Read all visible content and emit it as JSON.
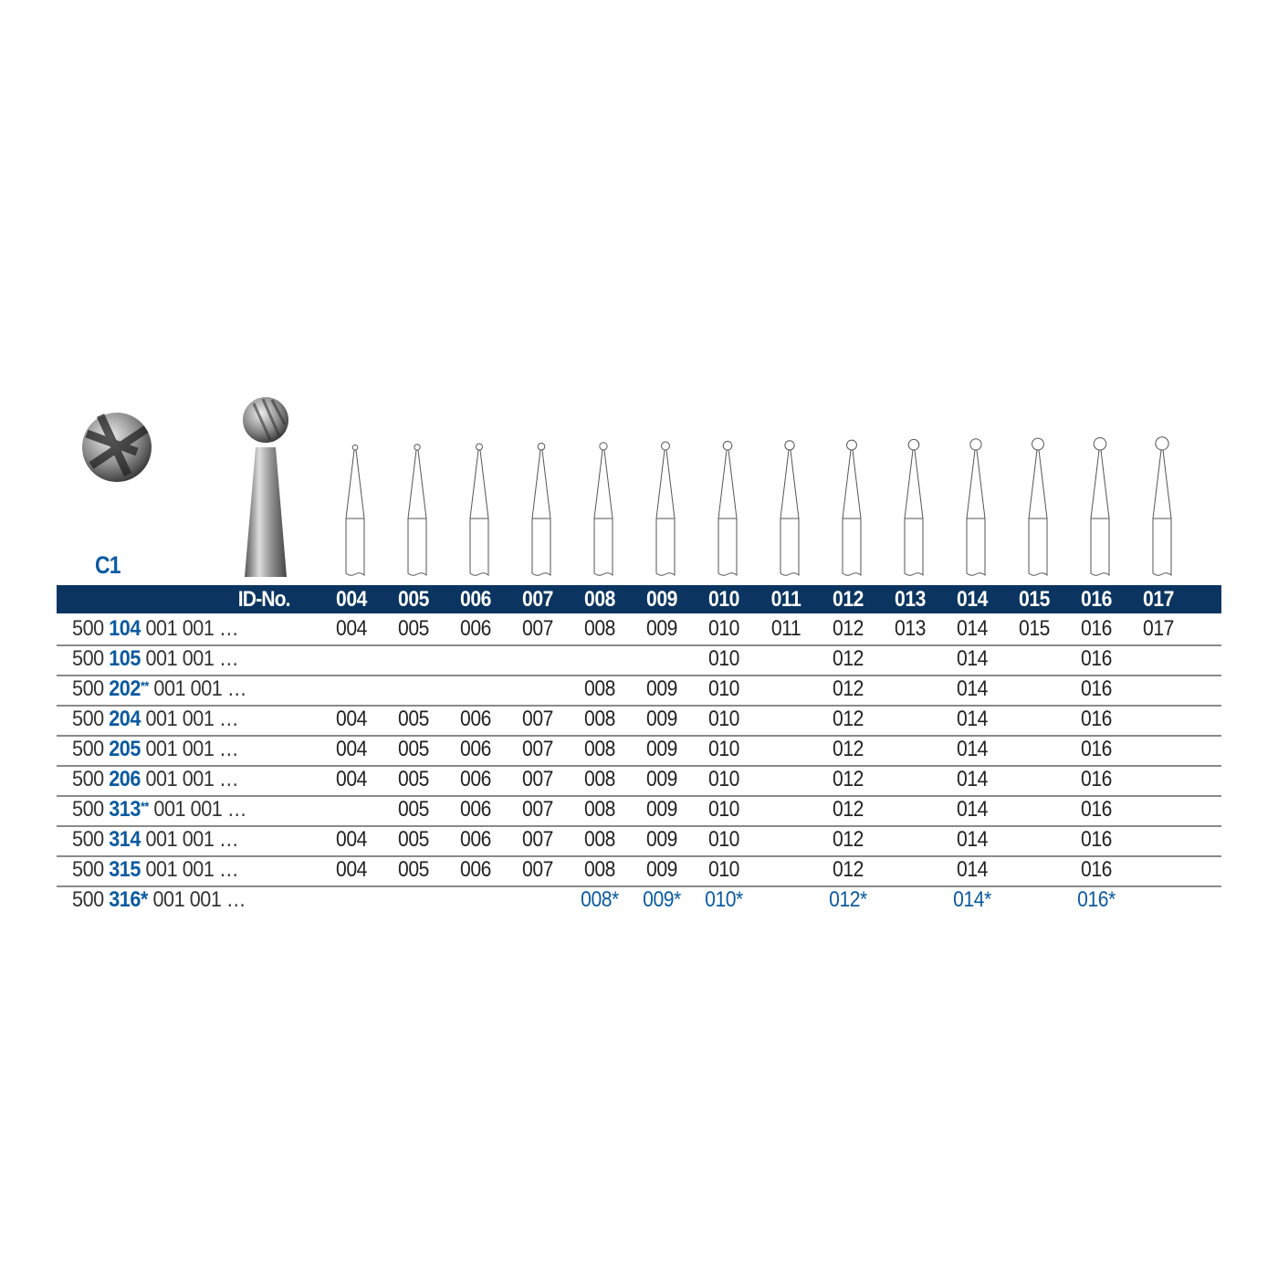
{
  "product_code": "C1",
  "header": {
    "id_label": "ID-No.",
    "sizes": [
      "004",
      "005",
      "006",
      "007",
      "008",
      "009",
      "010",
      "011",
      "012",
      "013",
      "014",
      "015",
      "016",
      "017"
    ]
  },
  "colors": {
    "header_bg": "#0b3560",
    "accent": "#0a5aa0",
    "text": "#222222",
    "separator": "#8a8a8a"
  },
  "rows": [
    {
      "prefix": "500",
      "code": "104",
      "mark": "",
      "suffix": "001 001 …",
      "cells": [
        "004",
        "005",
        "006",
        "007",
        "008",
        "009",
        "010",
        "011",
        "012",
        "013",
        "014",
        "015",
        "016",
        "017"
      ]
    },
    {
      "prefix": "500",
      "code": "105",
      "mark": "",
      "suffix": "001 001 …",
      "cells": [
        "",
        "",
        "",
        "",
        "",
        "",
        "010",
        "",
        "012",
        "",
        "014",
        "",
        "016",
        ""
      ]
    },
    {
      "prefix": "500",
      "code": "202",
      "mark": "**",
      "suffix": "001 001 …",
      "cells": [
        "",
        "",
        "",
        "",
        "008",
        "009",
        "010",
        "",
        "012",
        "",
        "014",
        "",
        "016",
        ""
      ]
    },
    {
      "prefix": "500",
      "code": "204",
      "mark": "",
      "suffix": "001 001 …",
      "cells": [
        "004",
        "005",
        "006",
        "007",
        "008",
        "009",
        "010",
        "",
        "012",
        "",
        "014",
        "",
        "016",
        ""
      ]
    },
    {
      "prefix": "500",
      "code": "205",
      "mark": "",
      "suffix": "001 001 …",
      "cells": [
        "004",
        "005",
        "006",
        "007",
        "008",
        "009",
        "010",
        "",
        "012",
        "",
        "014",
        "",
        "016",
        ""
      ]
    },
    {
      "prefix": "500",
      "code": "206",
      "mark": "",
      "suffix": "001 001 …",
      "cells": [
        "004",
        "005",
        "006",
        "007",
        "008",
        "009",
        "010",
        "",
        "012",
        "",
        "014",
        "",
        "016",
        ""
      ]
    },
    {
      "prefix": "500",
      "code": "313",
      "mark": "**",
      "suffix": "001 001 …",
      "cells": [
        "",
        "005",
        "006",
        "007",
        "008",
        "009",
        "010",
        "",
        "012",
        "",
        "014",
        "",
        "016",
        ""
      ]
    },
    {
      "prefix": "500",
      "code": "314",
      "mark": "",
      "suffix": "001 001 …",
      "cells": [
        "004",
        "005",
        "006",
        "007",
        "008",
        "009",
        "010",
        "",
        "012",
        "",
        "014",
        "",
        "016",
        ""
      ]
    },
    {
      "prefix": "500",
      "code": "315",
      "mark": "",
      "suffix": "001 001 …",
      "cells": [
        "004",
        "005",
        "006",
        "007",
        "008",
        "009",
        "010",
        "",
        "012",
        "",
        "014",
        "",
        "016",
        ""
      ]
    },
    {
      "prefix": "500",
      "code": "316*",
      "mark": "",
      "suffix": "001 001 …",
      "highlight": true,
      "cells": [
        "",
        "",
        "",
        "",
        "008*",
        "009*",
        "010*",
        "",
        "012*",
        "",
        "014*",
        "",
        "016*",
        ""
      ]
    }
  ]
}
